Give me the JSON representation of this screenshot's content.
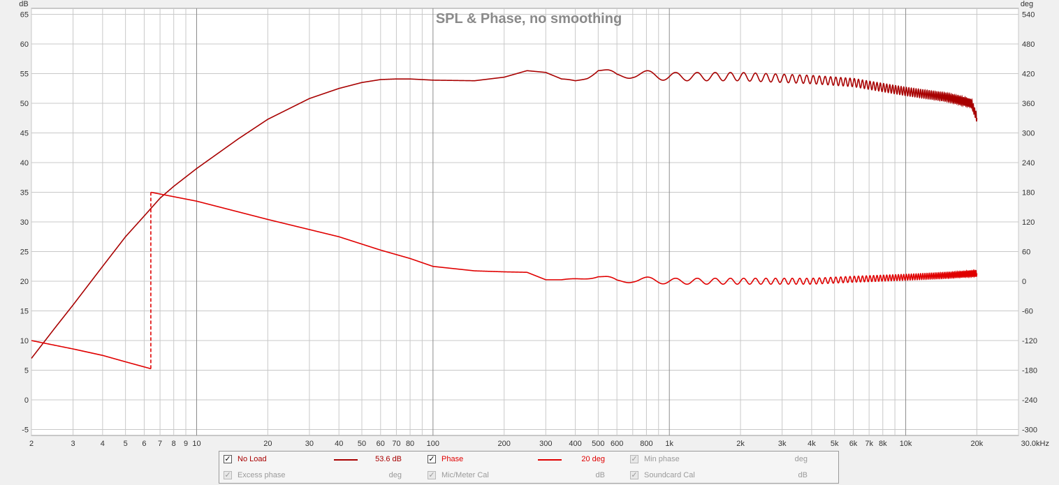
{
  "chart_data": {
    "type": "line",
    "title": "SPL & Phase, no smoothing",
    "xlabel": "",
    "x_scale": "log",
    "xlim": [
      2,
      30000
    ],
    "x_tick_labels": [
      "2",
      "3",
      "4",
      "5",
      "6",
      "7",
      "8",
      "9",
      "10",
      "20",
      "30",
      "40",
      "50",
      "60",
      "70",
      "80",
      "100",
      "200",
      "300",
      "400",
      "500",
      "600",
      "800",
      "1k",
      "2k",
      "3k",
      "4k",
      "5k",
      "6k",
      "7k",
      "8k",
      "10k",
      "20k",
      "30.0kHz"
    ],
    "left_axis": {
      "unit": "dB",
      "ylim": [
        -6,
        66
      ],
      "ticks": [
        65,
        60,
        55,
        50,
        45,
        40,
        35,
        30,
        25,
        20,
        15,
        10,
        5,
        0,
        -5
      ]
    },
    "right_axis": {
      "unit": "deg",
      "ylim": [
        -312,
        552
      ],
      "ticks": [
        540,
        480,
        420,
        360,
        300,
        240,
        180,
        120,
        60,
        0,
        -60,
        -120,
        -180,
        -240,
        -300
      ]
    },
    "grid": true,
    "legend_position": "bottom",
    "series": [
      {
        "name": "No Load",
        "axis": "left",
        "color": "#a80000",
        "points": [
          [
            2,
            7
          ],
          [
            2.5,
            12
          ],
          [
            3,
            16
          ],
          [
            4,
            22.5
          ],
          [
            5,
            27.5
          ],
          [
            6,
            31
          ],
          [
            7,
            34
          ],
          [
            8,
            36
          ],
          [
            10,
            39
          ],
          [
            15,
            44
          ],
          [
            20,
            47.3
          ],
          [
            30,
            50.8
          ],
          [
            40,
            52.5
          ],
          [
            50,
            53.5
          ],
          [
            60,
            54
          ],
          [
            70,
            54.1
          ],
          [
            80,
            54.1
          ],
          [
            100,
            53.9
          ],
          [
            150,
            53.8
          ],
          [
            200,
            54.4
          ],
          [
            250,
            55.5
          ],
          [
            300,
            55.2
          ],
          [
            350,
            54.1
          ],
          [
            400,
            53.9
          ],
          [
            450,
            54.5
          ],
          [
            500,
            55.5
          ],
          [
            600,
            54.5
          ],
          [
            700,
            55
          ],
          [
            1000,
            54.5
          ],
          [
            2000,
            54.5
          ],
          [
            4000,
            54
          ],
          [
            6000,
            53.5
          ],
          [
            10000,
            52
          ],
          [
            15000,
            51
          ],
          [
            19000,
            50
          ],
          [
            20000,
            47.5
          ]
        ],
        "ripple": {
          "start_hz": 350,
          "end_hz": 20000,
          "amplitude_db": 0.7,
          "period_hz": 250
        }
      },
      {
        "name": "Phase",
        "axis": "right",
        "color": "#e00000",
        "points": [
          [
            2,
            -120
          ],
          [
            3,
            -137
          ],
          [
            4,
            -150
          ],
          [
            5,
            -163
          ],
          [
            6.4,
            -177
          ],
          [
            6.41,
            180
          ],
          [
            10,
            162
          ],
          [
            20,
            125
          ],
          [
            40,
            90
          ],
          [
            60,
            63
          ],
          [
            80,
            46
          ],
          [
            100,
            30
          ],
          [
            150,
            21
          ],
          [
            200,
            19
          ],
          [
            250,
            18
          ],
          [
            300,
            3
          ],
          [
            350,
            3
          ],
          [
            400,
            6
          ],
          [
            500,
            9
          ],
          [
            600,
            -1
          ],
          [
            700,
            4
          ],
          [
            1000,
            0
          ],
          [
            2000,
            0
          ],
          [
            4000,
            0
          ],
          [
            6000,
            4
          ],
          [
            10000,
            8
          ],
          [
            15000,
            12
          ],
          [
            20000,
            16
          ]
        ],
        "ripple": {
          "start_hz": 350,
          "end_hz": 20000,
          "amplitude_deg": 6,
          "period_hz": 250
        },
        "dashed_segment_hz": [
          6.4,
          6.41
        ]
      }
    ],
    "legend": [
      {
        "label": "No Load",
        "value": "53.6 dB",
        "checked": true,
        "enabled": true,
        "color": "#a80000"
      },
      {
        "label": "Phase",
        "value": "20 deg",
        "checked": true,
        "enabled": true,
        "color": "#e00000"
      },
      {
        "label": "Min phase",
        "value": "deg",
        "checked": true,
        "enabled": false
      },
      {
        "label": "Excess phase",
        "value": "deg",
        "checked": true,
        "enabled": false
      },
      {
        "label": "Mic/Meter Cal",
        "value": "dB",
        "checked": true,
        "enabled": false
      },
      {
        "label": "Soundcard Cal",
        "value": "dB",
        "checked": true,
        "enabled": false
      }
    ]
  }
}
